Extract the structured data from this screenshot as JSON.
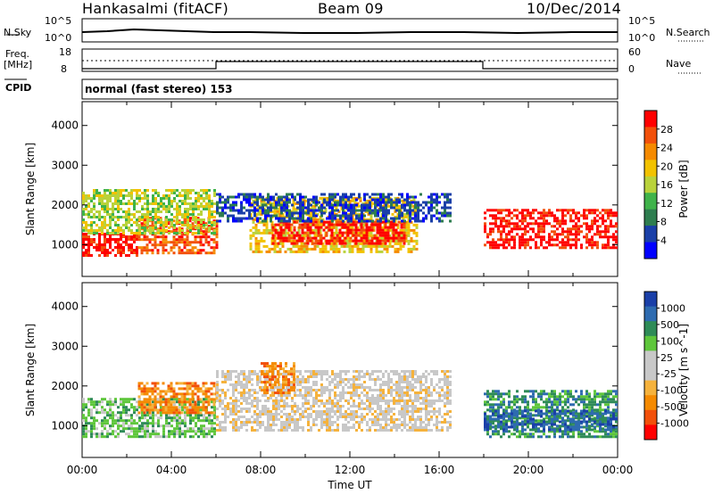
{
  "header": {
    "station": "Hankasalmi (fitACF)",
    "beam": "Beam 09",
    "date": "10/Dec/2014"
  },
  "noise_panel": {
    "left_label": "N.Sky",
    "right_label": "N.Search",
    "left_ticks": [
      "10^5",
      "10^0"
    ],
    "right_ticks": [
      "10^5",
      "10^0"
    ]
  },
  "freq_panel": {
    "left_label_1": "Freq.",
    "left_label_2": "[MHz]",
    "right_label": "Nave",
    "left_ticks": [
      "18",
      "8"
    ],
    "right_ticks": [
      "60",
      "0"
    ]
  },
  "cpid": {
    "label": "CPID",
    "mode": "normal (fast stereo) 153"
  },
  "colors": {
    "power": [
      "#0000ff",
      "#1a3fa8",
      "#2e7d4f",
      "#3fb34a",
      "#b9d23b",
      "#f2c200",
      "#f58a00",
      "#f2500a",
      "#ff0000"
    ],
    "velocity": [
      "#ff0000",
      "#f2500a",
      "#f58a00",
      "#f5b23c",
      "#c8c8c8",
      "#c8c8c8",
      "#5ec63b",
      "#2e8b57",
      "#2e6bb0",
      "#1a3fa8"
    ]
  },
  "chart_data": [
    {
      "type": "heatmap",
      "name": "power",
      "ylabel": "Slant Range [km]",
      "colorbar_label": "Power [dB]",
      "colorbar_ticks": [
        "28",
        "24",
        "20",
        "16",
        "12",
        "8",
        "4"
      ],
      "y_ticks": [
        "4000",
        "3000",
        "2000",
        "1000"
      ],
      "ylim": [
        200,
        4600
      ],
      "xlim": [
        0,
        24
      ],
      "regions": [
        {
          "x": [
            0.0,
            2.5
          ],
          "y": [
            700,
            1300
          ],
          "level": 8
        },
        {
          "x": [
            2.5,
            6.0
          ],
          "y": [
            800,
            1700
          ],
          "level": 7
        },
        {
          "x": [
            0.0,
            6.0
          ],
          "y": [
            1300,
            2400
          ],
          "level": 4
        },
        {
          "x": [
            7.5,
            15.0
          ],
          "y": [
            800,
            2200
          ],
          "level": 5
        },
        {
          "x": [
            8.5,
            14.5
          ],
          "y": [
            1000,
            1600
          ],
          "level": 8
        },
        {
          "x": [
            18.0,
            24.0
          ],
          "y": [
            900,
            1900
          ],
          "level": 8
        },
        {
          "x": [
            6.0,
            16.5
          ],
          "y": [
            1600,
            2300
          ],
          "level": 1
        }
      ]
    },
    {
      "type": "heatmap",
      "name": "velocity",
      "ylabel": "Slant Range [km]",
      "colorbar_label": "Velocity [m s^-1]",
      "colorbar_ticks": [
        "1000",
        "500",
        "100",
        "25",
        "-25",
        "-100",
        "-500",
        "-1000"
      ],
      "y_ticks": [
        "4000",
        "3000",
        "2000",
        "1000"
      ],
      "ylim": [
        200,
        4600
      ],
      "xlim": [
        0,
        24
      ],
      "x_ticks": [
        "00:00",
        "04:00",
        "08:00",
        "12:00",
        "16:00",
        "20:00",
        "00:00"
      ],
      "xlabel": "Time UT",
      "regions": [
        {
          "x": [
            0.0,
            6.0
          ],
          "y": [
            700,
            1700
          ],
          "level": 6
        },
        {
          "x": [
            2.5,
            6.0
          ],
          "y": [
            1300,
            2100
          ],
          "level": 2
        },
        {
          "x": [
            6.0,
            16.5
          ],
          "y": [
            900,
            2400
          ],
          "level": 4
        },
        {
          "x": [
            8.0,
            9.5
          ],
          "y": [
            1800,
            2600
          ],
          "level": 2
        },
        {
          "x": [
            18.0,
            24.0
          ],
          "y": [
            700,
            1900
          ],
          "level": 7
        },
        {
          "x": [
            18.0,
            24.0
          ],
          "y": [
            900,
            1400
          ],
          "level": 8
        }
      ]
    }
  ]
}
